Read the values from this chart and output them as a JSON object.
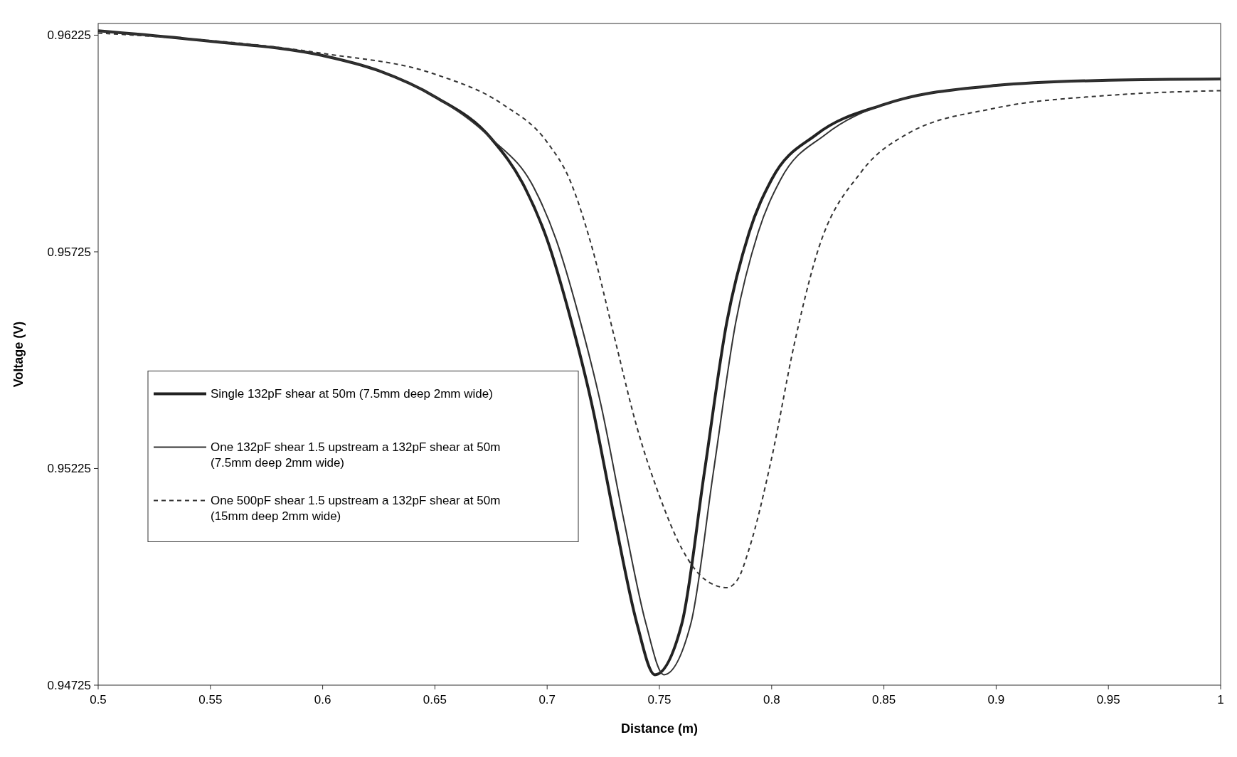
{
  "chart_data": {
    "type": "line",
    "xlabel": "Distance (m)",
    "ylabel": "Voltage (V)",
    "xlim": [
      0.5,
      1
    ],
    "ylim": [
      0.94725,
      0.96252
    ],
    "xticks": [
      0.5,
      0.55,
      0.6,
      0.65,
      0.7,
      0.75,
      0.8,
      0.85,
      0.9,
      0.95,
      1
    ],
    "yticks": [
      0.94725,
      0.95225,
      0.95725,
      0.96225
    ],
    "grid": false,
    "legend": "left",
    "x": [
      0.5,
      0.55,
      0.6,
      0.625,
      0.65,
      0.675,
      0.69,
      0.7,
      0.71,
      0.72,
      0.73,
      0.74,
      0.748,
      0.76,
      0.77,
      0.78,
      0.79,
      0.8,
      0.82,
      0.85,
      0.9,
      0.95,
      1
    ],
    "series": [
      {
        "name": "Single 132pF shear at 50m (7.5mm deep 2mm wide)",
        "color": "#222222",
        "line_style": "solid",
        "values": [
          0.96235,
          0.96211,
          0.96178,
          0.96143,
          0.96083,
          0.95987,
          0.95874,
          0.95753,
          0.95579,
          0.95371,
          0.9511,
          0.94867,
          0.94749,
          0.94867,
          0.95215,
          0.95562,
          0.9577,
          0.95892,
          0.95996,
          0.96065,
          0.96109,
          0.96121,
          0.96124
        ]
      },
      {
        "name": "One 132pF shear 1.5 upstream a 132pF shear at 50m (7.5mm deep 2mm wide)",
        "color": "#333333",
        "line_style": "solid",
        "x": [
          0.5,
          0.55,
          0.6,
          0.625,
          0.65,
          0.675,
          0.694,
          0.704,
          0.714,
          0.724,
          0.734,
          0.744,
          0.752,
          0.764,
          0.774,
          0.784,
          0.794,
          0.804,
          0.824,
          0.85,
          0.9,
          0.95,
          1
        ],
        "values": [
          0.96235,
          0.96211,
          0.96178,
          0.96143,
          0.96083,
          0.95987,
          0.95874,
          0.95753,
          0.95579,
          0.95371,
          0.9511,
          0.94867,
          0.94749,
          0.94867,
          0.95215,
          0.95562,
          0.9577,
          0.95892,
          0.95996,
          0.96065,
          0.96109,
          0.96121,
          0.96124
        ]
      },
      {
        "name": "One 500pF shear 1.5 upstream a 132pF shear at 50m (15mm deep 2mm wide)",
        "color": "#333333",
        "line_style": "dashed",
        "x": [
          0.5,
          0.6,
          0.65,
          0.68,
          0.7,
          0.71,
          0.72,
          0.73,
          0.74,
          0.75,
          0.76,
          0.77,
          0.78,
          0.785,
          0.79,
          0.8,
          0.81,
          0.82,
          0.84,
          0.86,
          0.9,
          0.95,
          1
        ],
        "values": [
          0.9623,
          0.96183,
          0.96135,
          0.96066,
          0.95978,
          0.95892,
          0.95735,
          0.95527,
          0.9532,
          0.95162,
          0.9504,
          0.9497,
          0.9495,
          0.9497,
          0.9504,
          0.95249,
          0.9551,
          0.95718,
          0.9591,
          0.95996,
          0.96057,
          0.96086,
          0.96097
        ]
      }
    ]
  }
}
